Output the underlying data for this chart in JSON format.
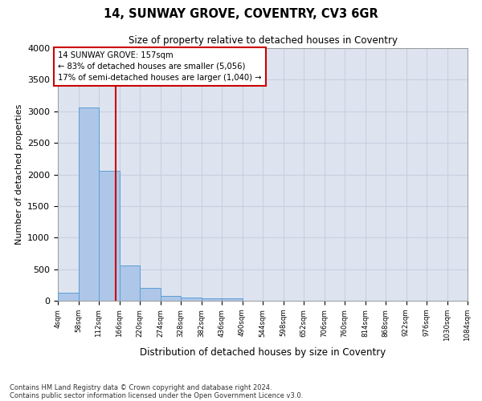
{
  "title": "14, SUNWAY GROVE, COVENTRY, CV3 6GR",
  "subtitle": "Size of property relative to detached houses in Coventry",
  "xlabel": "Distribution of detached houses by size in Coventry",
  "ylabel": "Number of detached properties",
  "footnote1": "Contains HM Land Registry data © Crown copyright and database right 2024.",
  "footnote2": "Contains public sector information licensed under the Open Government Licence v3.0.",
  "bar_color": "#aec6e8",
  "bar_edge_color": "#5a9fd4",
  "grid_color": "#c8d0e0",
  "background_color": "#dde4f0",
  "vline_x": 157,
  "vline_color": "#cc0000",
  "annotation_line1": "14 SUNWAY GROVE: 157sqm",
  "annotation_line2": "← 83% of detached houses are smaller (5,056)",
  "annotation_line3": "17% of semi-detached houses are larger (1,040) →",
  "annotation_box_color": "#cc0000",
  "bin_edges": [
    4,
    58,
    112,
    166,
    220,
    274,
    328,
    382,
    436,
    490,
    544,
    598,
    652,
    706,
    760,
    814,
    868,
    922,
    976,
    1030,
    1084
  ],
  "bar_heights": [
    130,
    3060,
    2060,
    560,
    200,
    75,
    55,
    35,
    35,
    0,
    0,
    0,
    0,
    0,
    0,
    0,
    0,
    0,
    0,
    0
  ],
  "ylim": [
    0,
    4000
  ],
  "yticks": [
    0,
    500,
    1000,
    1500,
    2000,
    2500,
    3000,
    3500,
    4000
  ]
}
